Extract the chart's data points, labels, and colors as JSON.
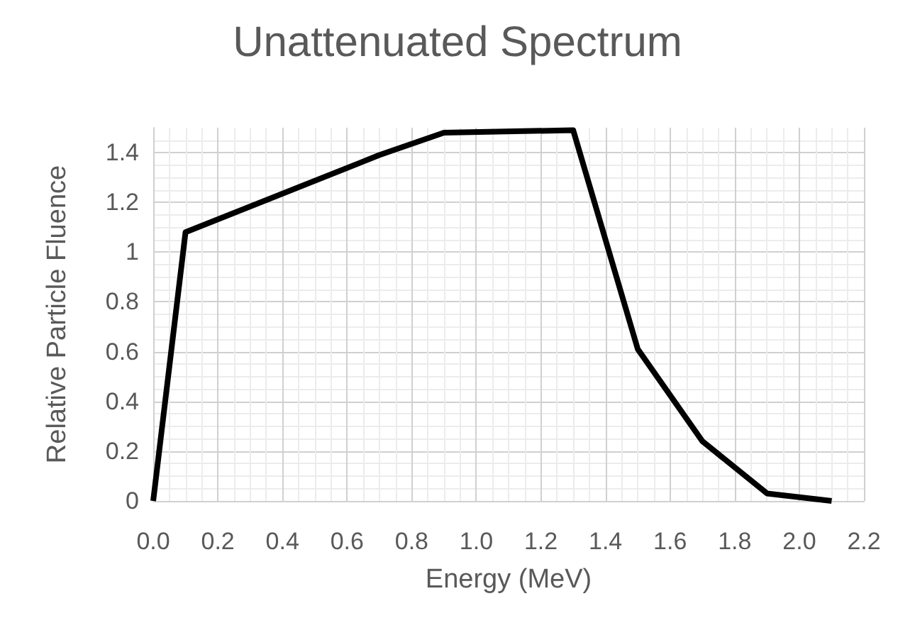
{
  "chart_data": {
    "type": "line",
    "title": "Unattenuated Spectrum",
    "xlabel": "Energy (MeV)",
    "ylabel": "Relative Particle Fluence",
    "x": [
      0,
      0.1,
      0.7,
      0.9,
      1.3,
      1.5,
      1.7,
      1.9,
      2.1
    ],
    "series": [
      {
        "color": "#000000",
        "values": [
          0,
          1.08,
          1.39,
          1.48,
          1.49,
          0.61,
          0.24,
          0.03,
          0
        ]
      }
    ],
    "xlim": [
      0,
      2.2
    ],
    "xticks": [
      {
        "value": 0,
        "label": "0.0"
      },
      {
        "value": 0.2,
        "label": "0.2"
      },
      {
        "value": 0.4,
        "label": "0.4"
      },
      {
        "value": 0.6,
        "label": "0.6"
      },
      {
        "value": 0.8,
        "label": "0.8"
      },
      {
        "value": 1,
        "label": "1.0"
      },
      {
        "value": 1.2,
        "label": "1.2"
      },
      {
        "value": 1.4,
        "label": "1.4"
      },
      {
        "value": 1.6,
        "label": "1.6"
      },
      {
        "value": 1.8,
        "label": "1.8"
      },
      {
        "value": 2,
        "label": "2.0"
      },
      {
        "value": 2.2,
        "label": "2.2"
      }
    ],
    "ylim": [
      0,
      1.5
    ],
    "yticks": [
      0,
      0.2,
      0.4,
      0.6,
      0.8,
      1,
      1.2,
      1.4
    ],
    "grid": true,
    "marker": "none",
    "line_style": "solid"
  }
}
